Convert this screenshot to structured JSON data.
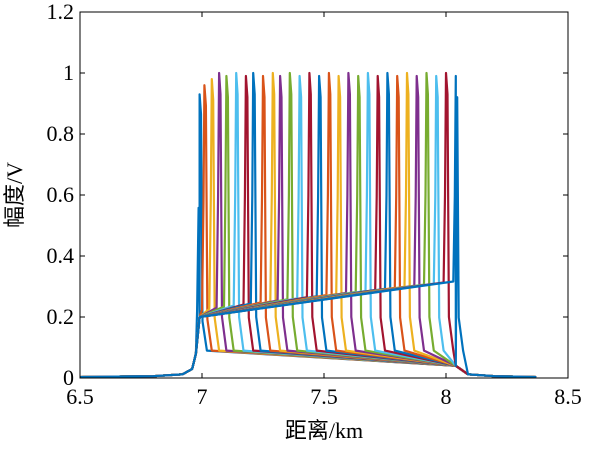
{
  "chart_data": {
    "type": "line",
    "title": "",
    "xlabel": "距离/km",
    "ylabel": "幅度/V",
    "xlim": [
      6.5,
      8.5
    ],
    "ylim": [
      0,
      1.2
    ],
    "xticks": [
      6.5,
      7,
      7.5,
      8,
      8.5
    ],
    "xtick_labels": [
      "6.5",
      "7",
      "7.5",
      "8",
      "8.5"
    ],
    "yticks": [
      0,
      0.2,
      0.4,
      0.6,
      0.8,
      1,
      1.2
    ],
    "ytick_labels": [
      "0",
      "0.2",
      "0.4",
      "0.6",
      "0.8",
      "1",
      "1.2"
    ],
    "grid": false,
    "legend": "none",
    "pulse_rise_start_km": 6.96,
    "pulse_rise_end_km": 6.99,
    "baseline_start_km": 6.5,
    "baseline_end_km": 8.37,
    "peak_positions_km": [
      6.99,
      7.01,
      7.04,
      7.07,
      7.1,
      7.14,
      7.18,
      7.21,
      7.25,
      7.29,
      7.32,
      7.36,
      7.4,
      7.44,
      7.48,
      7.52,
      7.56,
      7.6,
      7.64,
      7.68,
      7.72,
      7.76,
      7.8,
      7.84,
      7.88,
      7.92,
      7.96,
      8.0,
      8.04
    ],
    "peak_amplitudes_v": [
      0.93,
      0.96,
      0.98,
      1.0,
      0.99,
      1.0,
      0.99,
      1.0,
      0.99,
      1.0,
      0.99,
      1.0,
      0.99,
      1.0,
      0.99,
      1.0,
      0.99,
      1.0,
      0.99,
      1.0,
      0.99,
      1.0,
      0.99,
      1.0,
      0.99,
      1.0,
      0.99,
      1.0,
      0.99
    ],
    "series_colors": [
      "#0072BD",
      "#D95319",
      "#EDB120",
      "#7E2F8E",
      "#77AC30",
      "#4DBEEE",
      "#A2142F"
    ]
  }
}
